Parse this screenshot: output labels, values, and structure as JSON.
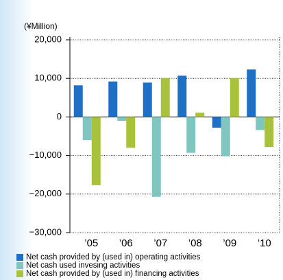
{
  "chart_data": {
    "type": "bar",
    "y_label": "(¥Million)",
    "categories": [
      "’05",
      "’06",
      "’07",
      "’08",
      "’09",
      "’10"
    ],
    "series": [
      {
        "name": "Net cash provided by (used in) operating activities",
        "color": "#1f6fc5",
        "values": [
          8200,
          9200,
          8900,
          10700,
          -2800,
          12300
        ]
      },
      {
        "name": "Net cash used invesing activities",
        "color": "#7fc6c0",
        "values": [
          -6000,
          -1000,
          -20700,
          -9300,
          -10200,
          -3400
        ]
      },
      {
        "name": "Net cash provided by (used in) financing activities",
        "color": "#a9c23c",
        "values": [
          -17700,
          -8000,
          10100,
          1100,
          10100,
          -7800
        ]
      }
    ],
    "ylim": [
      -30000,
      20000
    ],
    "yticks": [
      {
        "value": -30000,
        "label": "−30,000"
      },
      {
        "value": -20000,
        "label": "−20,000"
      },
      {
        "value": -10000,
        "label": "−10,000"
      },
      0,
      {
        "value": 10000,
        "label": "10,000"
      },
      {
        "value": 20000,
        "label": "20,000"
      }
    ],
    "grid": true
  }
}
